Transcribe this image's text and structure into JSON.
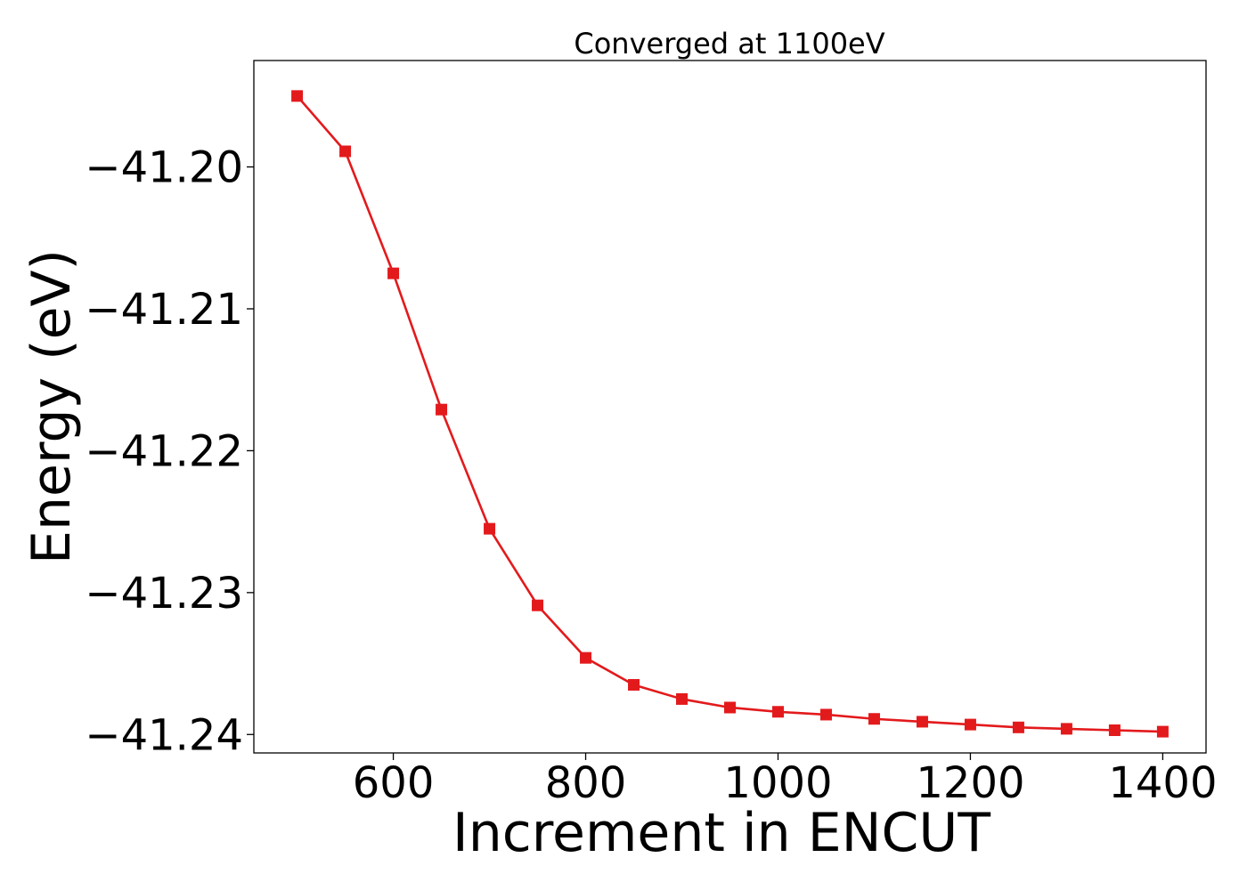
{
  "chart_data": {
    "type": "line",
    "title": "Converged at 1100eV",
    "xlabel": "Increment in ENCUT",
    "ylabel": "Energy (eV)",
    "xlim": [
      455,
      1445
    ],
    "ylim": [
      -41.2413,
      -41.1925
    ],
    "x_ticks": [
      600,
      800,
      1000,
      1200,
      1400
    ],
    "x_tick_labels": [
      "600",
      "800",
      "1000",
      "1200",
      "1400"
    ],
    "y_ticks": [
      -41.2,
      -41.21,
      -41.22,
      -41.23,
      -41.24
    ],
    "y_tick_labels": [
      "−41.20",
      "−41.21",
      "−41.22",
      "−41.23",
      "−41.24"
    ],
    "grid": false,
    "series": [
      {
        "color": "#e31a1c",
        "marker": "square",
        "x": [
          500,
          550,
          600,
          650,
          700,
          750,
          800,
          850,
          900,
          950,
          1000,
          1050,
          1100,
          1150,
          1200,
          1250,
          1300,
          1350,
          1400
        ],
        "y": [
          -41.195,
          -41.1989,
          -41.2075,
          -41.2171,
          -41.2255,
          -41.2309,
          -41.2346,
          -41.2365,
          -41.2375,
          -41.2381,
          -41.2384,
          -41.2386,
          -41.2389,
          -41.2391,
          -41.2393,
          -41.2395,
          -41.2396,
          -41.2397,
          -41.2398
        ]
      }
    ]
  }
}
